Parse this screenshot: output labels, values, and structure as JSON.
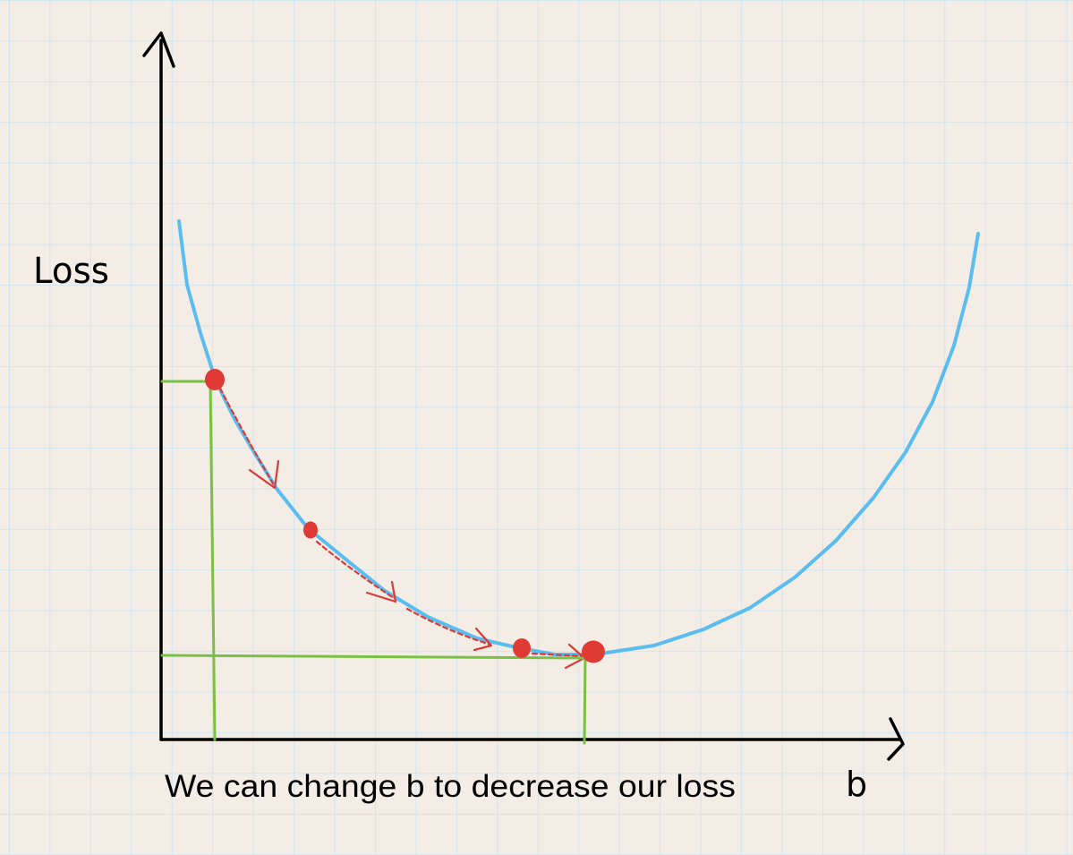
{
  "labels": {
    "y_axis": "Loss",
    "x_axis": "b",
    "caption": "We can change b to decrease our loss"
  },
  "colors": {
    "background": "#f3ede6",
    "grid": "#c8e3f4",
    "axes": "#000000",
    "curve": "#5bbcf0",
    "points": "#e03a34",
    "steps": "#d83b36",
    "guides": "#7ac143"
  },
  "steps_shown": 3,
  "points_shown": 4
}
